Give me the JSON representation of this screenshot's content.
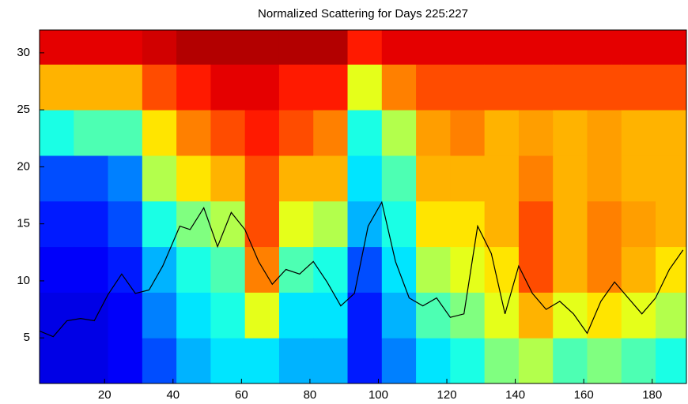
{
  "chart_data": {
    "type": "heatmap",
    "title": "Normalized Scattering for Days 225:227",
    "xlim": [
      1,
      190
    ],
    "ylim": [
      1,
      32
    ],
    "xticks": [
      20,
      40,
      60,
      80,
      100,
      120,
      140,
      160,
      180
    ],
    "yticks": [
      5,
      10,
      15,
      20,
      25,
      30
    ],
    "colormap": "jet",
    "x_edges": [
      1,
      11,
      21,
      31,
      41,
      51,
      61,
      71,
      81,
      91,
      101,
      111,
      121,
      131,
      141,
      151,
      161,
      171,
      181,
      190
    ],
    "y_edges": [
      1,
      5,
      9,
      13,
      17,
      21,
      25,
      29,
      32
    ],
    "z": [
      [
        0.1,
        0.1,
        0.12,
        0.15,
        0.2,
        0.4,
        0.7,
        0.9
      ],
      [
        0.1,
        0.1,
        0.12,
        0.15,
        0.2,
        0.45,
        0.7,
        0.9
      ],
      [
        0.12,
        0.12,
        0.15,
        0.2,
        0.25,
        0.45,
        0.7,
        0.9
      ],
      [
        0.2,
        0.25,
        0.3,
        0.4,
        0.55,
        0.65,
        0.8,
        0.92
      ],
      [
        0.3,
        0.35,
        0.4,
        0.5,
        0.65,
        0.75,
        0.85,
        0.95
      ],
      [
        0.35,
        0.4,
        0.45,
        0.55,
        0.7,
        0.8,
        0.9,
        0.95
      ],
      [
        0.35,
        0.6,
        0.75,
        0.8,
        0.8,
        0.85,
        0.9,
        0.95
      ],
      [
        0.3,
        0.35,
        0.45,
        0.6,
        0.7,
        0.8,
        0.85,
        0.95
      ],
      [
        0.3,
        0.35,
        0.4,
        0.55,
        0.7,
        0.75,
        0.85,
        0.95
      ],
      [
        0.15,
        0.15,
        0.2,
        0.3,
        0.35,
        0.4,
        0.6,
        0.85
      ],
      [
        0.25,
        0.3,
        0.35,
        0.4,
        0.45,
        0.55,
        0.75,
        0.9
      ],
      [
        0.35,
        0.45,
        0.55,
        0.65,
        0.7,
        0.72,
        0.8,
        0.9
      ],
      [
        0.4,
        0.5,
        0.6,
        0.65,
        0.7,
        0.75,
        0.8,
        0.9
      ],
      [
        0.5,
        0.6,
        0.65,
        0.7,
        0.7,
        0.7,
        0.8,
        0.9
      ],
      [
        0.55,
        0.7,
        0.8,
        0.8,
        0.75,
        0.72,
        0.8,
        0.9
      ],
      [
        0.45,
        0.6,
        0.7,
        0.7,
        0.7,
        0.7,
        0.8,
        0.9
      ],
      [
        0.5,
        0.65,
        0.75,
        0.75,
        0.72,
        0.72,
        0.8,
        0.9
      ],
      [
        0.45,
        0.6,
        0.7,
        0.72,
        0.7,
        0.7,
        0.8,
        0.9
      ],
      [
        0.4,
        0.55,
        0.65,
        0.7,
        0.7,
        0.7,
        0.8,
        0.9
      ]
    ],
    "line": {
      "color": "#000000",
      "x": [
        1,
        5,
        9,
        13,
        17,
        21,
        25,
        29,
        33,
        37,
        42,
        45,
        49,
        53,
        57,
        61,
        65,
        69,
        73,
        77,
        81,
        85,
        89,
        93,
        97,
        101,
        105,
        109,
        113,
        117,
        121,
        125,
        129,
        133,
        137,
        141,
        145,
        149,
        153,
        157,
        161,
        165,
        169,
        173,
        177,
        181,
        185,
        189
      ],
      "values": [
        5.6,
        5.1,
        6.5,
        6.7,
        6.5,
        8.8,
        10.6,
        8.9,
        9.2,
        11.3,
        14.8,
        14.5,
        16.4,
        13,
        16,
        14.5,
        11.7,
        9.7,
        11,
        10.6,
        11.7,
        9.9,
        7.8,
        8.9,
        14.8,
        16.9,
        11.7,
        8.5,
        7.8,
        8.5,
        6.8,
        7.1,
        14.8,
        12.4,
        7.1,
        11.3,
        8.9,
        7.5,
        8.2,
        7.1,
        5.4,
        8.2,
        9.9,
        8.5,
        7.1,
        8.5,
        11,
        12.7
      ]
    }
  }
}
